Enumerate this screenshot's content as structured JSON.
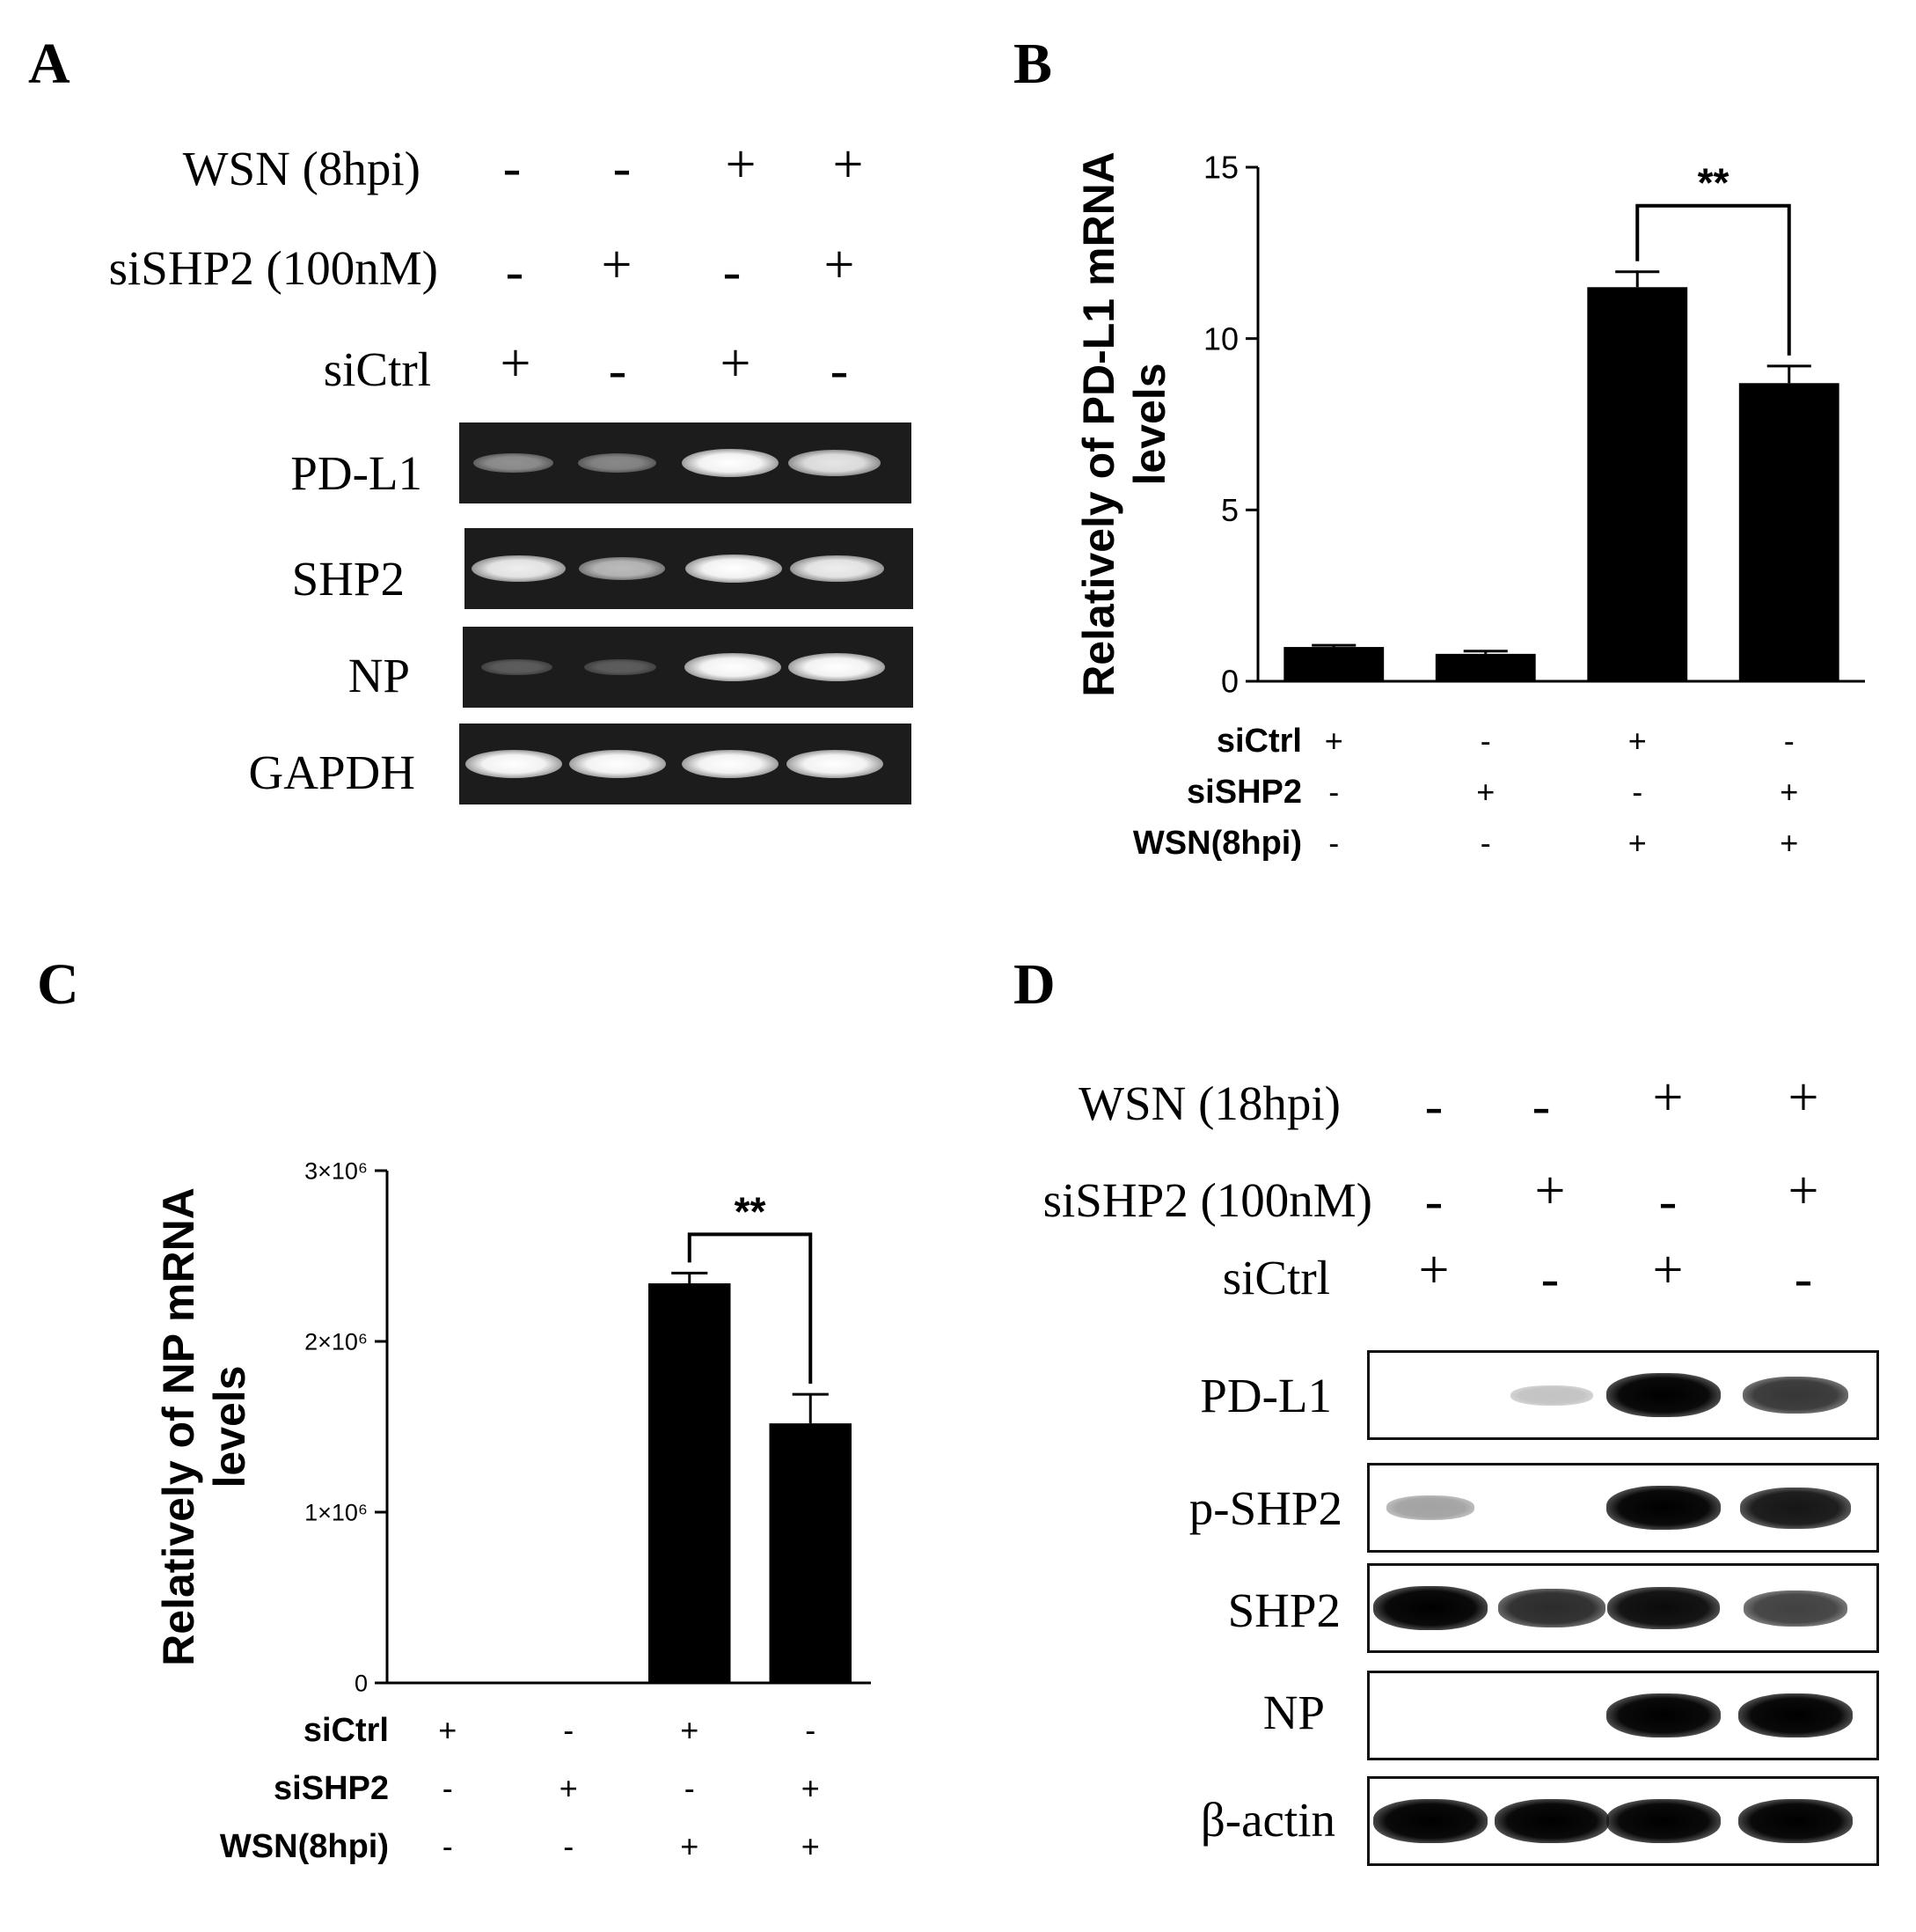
{
  "panel_a": {
    "letter": "A",
    "conditions": [
      {
        "label": "WSN  (8hpi)",
        "signs": [
          "-",
          "-",
          "+",
          "+"
        ]
      },
      {
        "label": "siSHP2  (100nM)",
        "signs": [
          "-",
          "+",
          "-",
          "+"
        ]
      },
      {
        "label": "siCtrl",
        "signs": [
          "+",
          "-",
          "+",
          "-"
        ]
      }
    ],
    "gels": [
      {
        "label": "PD-L1",
        "intensity": [
          0.35,
          0.3,
          1.0,
          0.85
        ]
      },
      {
        "label": "SHP2",
        "intensity": [
          0.9,
          0.6,
          1.0,
          0.9
        ]
      },
      {
        "label": "NP",
        "intensity": [
          0.05,
          0.05,
          1.0,
          1.0
        ]
      },
      {
        "label": "GAPDH",
        "intensity": [
          1.0,
          1.0,
          1.0,
          1.0
        ]
      }
    ]
  },
  "panel_d": {
    "letter": "D",
    "conditions": [
      {
        "label": "WSN  (18hpi)",
        "signs": [
          "-",
          "-",
          "+",
          "+"
        ]
      },
      {
        "label": "siSHP2  (100nM)",
        "signs": [
          "-",
          "+",
          "-",
          "+"
        ]
      },
      {
        "label": "siCtrl",
        "signs": [
          "+",
          "-",
          "+",
          "-"
        ]
      }
    ],
    "blots": [
      {
        "label": "PD-L1",
        "intensity": [
          0.0,
          0.1,
          1.0,
          0.75
        ]
      },
      {
        "label": "p-SHP2",
        "intensity": [
          0.25,
          0.0,
          1.0,
          0.9
        ]
      },
      {
        "label": "SHP2",
        "intensity": [
          1.0,
          0.8,
          0.95,
          0.7
        ]
      },
      {
        "label": "NP",
        "intensity": [
          0.0,
          0.0,
          1.0,
          1.0
        ]
      },
      {
        "label": "β-actin",
        "intensity": [
          1.0,
          1.0,
          1.0,
          1.0
        ]
      }
    ]
  },
  "chart_data": [
    {
      "panel": "B",
      "type": "bar",
      "ylabel": "Relatively of PD-L1 mRNA levels",
      "ylabel_lines": [
        "Relatively of PD-L1 mRNA",
        "levels"
      ],
      "ylim": [
        0,
        15
      ],
      "yticks": [
        0,
        5,
        10,
        15
      ],
      "ytick_labels": [
        "0",
        "5",
        "10",
        "15"
      ],
      "values": [
        1.0,
        0.8,
        11.5,
        8.7
      ],
      "errors": [
        0.05,
        0.08,
        0.45,
        0.5
      ],
      "bar_color": "#000000",
      "significance": {
        "from": 2,
        "to": 3,
        "label": "**"
      },
      "conditions": [
        {
          "label": "siCtrl",
          "signs": [
            "+",
            "-",
            "+",
            "-"
          ]
        },
        {
          "label": "siSHP2",
          "signs": [
            "-",
            "+",
            "-",
            "+"
          ]
        },
        {
          "label": "WSN(8hpi)",
          "signs": [
            "-",
            "-",
            "+",
            "+"
          ]
        }
      ]
    },
    {
      "panel": "C",
      "type": "bar",
      "ylabel": "Relatively of NP mRNA levels",
      "ylabel_lines": [
        "Relatively of NP mRNA",
        "levels"
      ],
      "ylim": [
        0,
        3000000
      ],
      "yticks": [
        0,
        1000000,
        2000000,
        3000000
      ],
      "ytick_labels": [
        "0",
        "1×10⁶",
        "2×10⁶",
        "3×10⁶"
      ],
      "values": [
        0,
        0,
        2340000,
        1520000
      ],
      "errors": [
        0,
        0,
        60000,
        170000
      ],
      "bar_color": "#000000",
      "significance": {
        "from": 2,
        "to": 3,
        "label": "**"
      },
      "conditions": [
        {
          "label": "siCtrl",
          "signs": [
            "+",
            "-",
            "+",
            "-"
          ]
        },
        {
          "label": "siSHP2",
          "signs": [
            "-",
            "+",
            "-",
            "+"
          ]
        },
        {
          "label": "WSN(8hpi)",
          "signs": [
            "-",
            "-",
            "+",
            "+"
          ]
        }
      ]
    }
  ]
}
